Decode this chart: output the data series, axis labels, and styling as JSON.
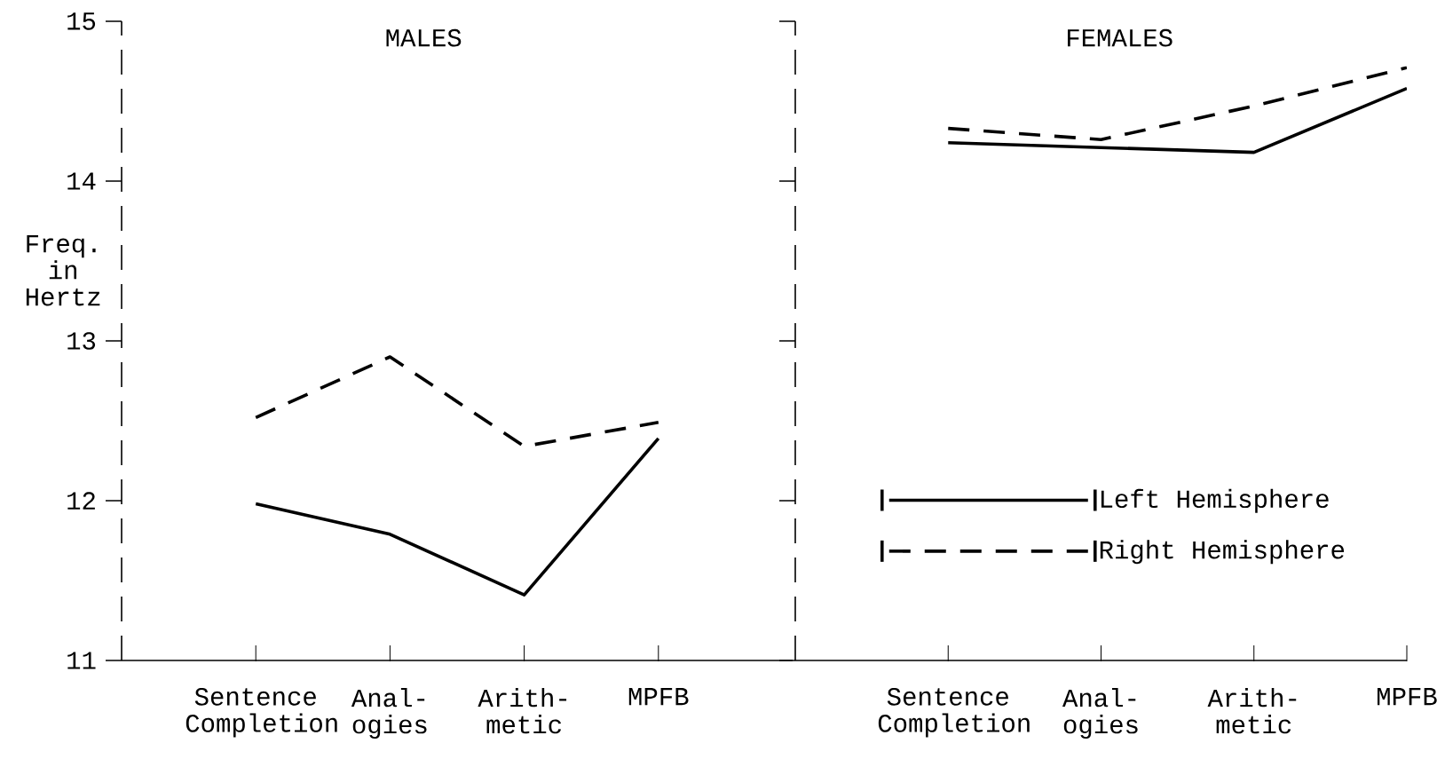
{
  "chart_data": [
    {
      "type": "line",
      "title": "MALES",
      "ylabel": "Freq. in Hertz",
      "categories": [
        "Sentence Completion",
        "Anal-ogies",
        "Arith-metic",
        "MPFB"
      ],
      "ylim": [
        11,
        15
      ],
      "yticks": [
        11,
        12,
        13,
        14,
        15
      ],
      "grid": false,
      "legend": false,
      "marker": "none",
      "series": [
        {
          "color": "#000000",
          "line_style": "solid",
          "values": [
            11.98,
            11.79,
            11.41,
            12.39
          ]
        },
        {
          "color": "#000000",
          "line_style": "dashed",
          "values": [
            12.52,
            12.9,
            12.34,
            12.49
          ]
        }
      ]
    },
    {
      "type": "line",
      "title": "FEMALES",
      "categories": [
        "Sentence Completion",
        "Anal-ogies",
        "Arith-metic",
        "MPFB"
      ],
      "ylim": [
        11,
        15
      ],
      "yticks": [
        11,
        12,
        13,
        14,
        15
      ],
      "tick_labels": "x",
      "grid": false,
      "legend": "bottom right",
      "marker": "none",
      "series": [
        {
          "name": "Left Hemisphere",
          "color": "#000000",
          "line_style": "solid",
          "values": [
            14.24,
            14.21,
            14.18,
            14.58
          ]
        },
        {
          "name": "Right Hemisphere",
          "color": "#000000",
          "line_style": "dashed",
          "values": [
            14.33,
            14.26,
            14.47,
            14.71
          ]
        }
      ]
    }
  ]
}
